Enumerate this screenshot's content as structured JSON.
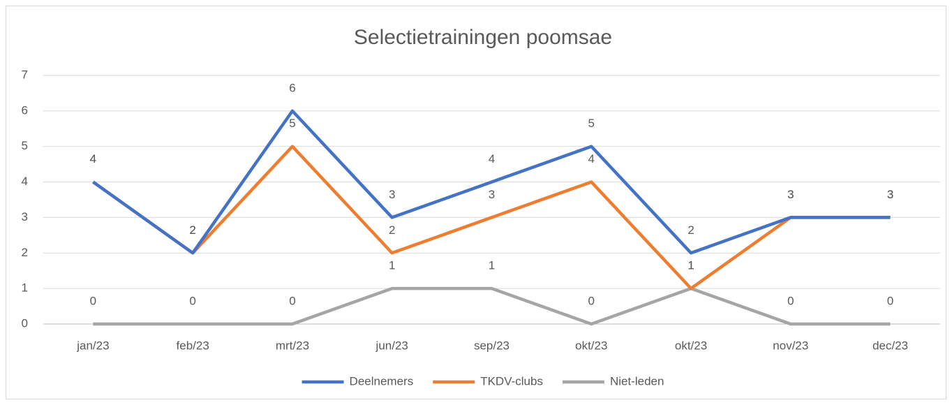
{
  "chart_data": {
    "type": "line",
    "title": "Selectietrainingen poomsae",
    "categories": [
      "jan/23",
      "feb/23",
      "mrt/23",
      "jun/23",
      "sep/23",
      "okt/23",
      "okt/23",
      "nov/23",
      "dec/23"
    ],
    "series": [
      {
        "name": "Deelnemers",
        "color": "#4472c4",
        "values": [
          4,
          2,
          6,
          3,
          4,
          5,
          2,
          3,
          3
        ]
      },
      {
        "name": "TKDV-clubs",
        "color": "#ed7d31",
        "values": [
          4,
          2,
          5,
          2,
          3,
          4,
          1,
          3,
          3
        ]
      },
      {
        "name": "Niet-leden",
        "color": "#a5a5a5",
        "values": [
          0,
          0,
          0,
          1,
          1,
          0,
          1,
          0,
          0
        ]
      }
    ],
    "ylim": [
      0,
      7
    ],
    "yticks": [
      0,
      1,
      2,
      3,
      4,
      5,
      6,
      7
    ],
    "grid": true,
    "legend": "bottom"
  }
}
